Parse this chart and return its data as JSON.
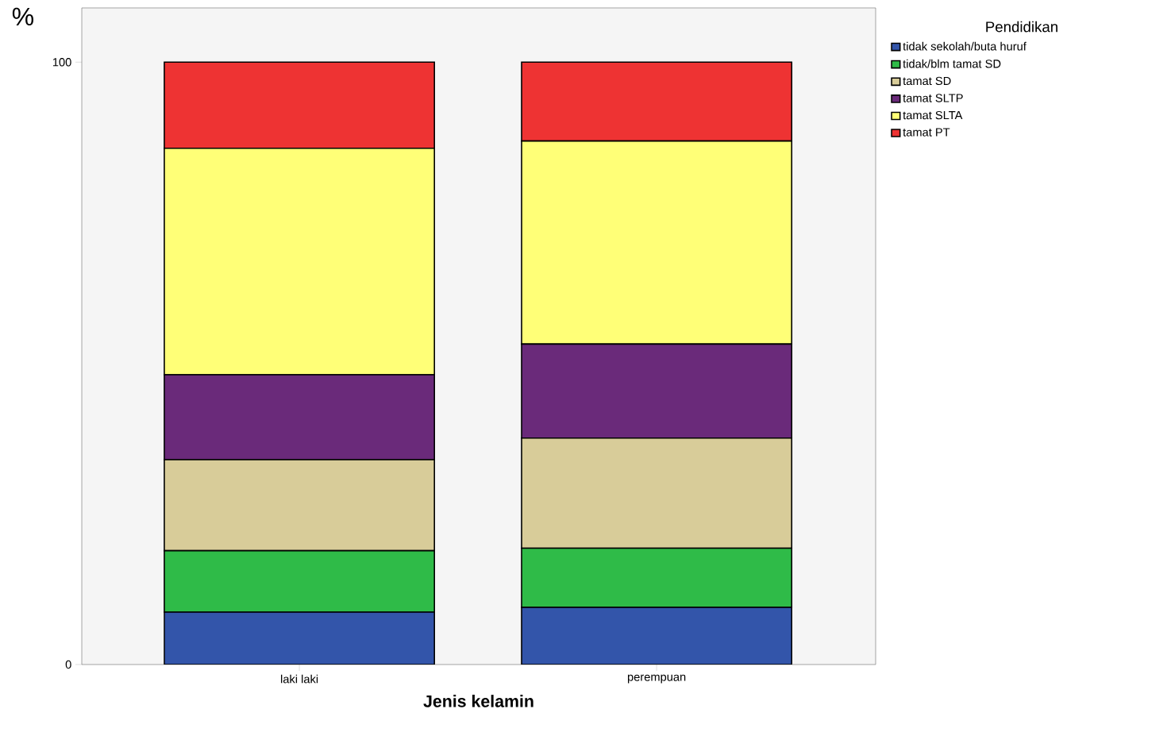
{
  "chart_data": {
    "type": "bar",
    "stacked": true,
    "categories": [
      "laki laki",
      "perempuan"
    ],
    "xlabel": "Jenis kelamin",
    "ylabel": "%",
    "legend_title": "Pendidikan",
    "legend": "right",
    "ylim": [
      0,
      109
    ],
    "yticks": [
      0,
      100
    ],
    "series": [
      {
        "name": "tidak sekolah/buta huruf",
        "color": "#3355aa",
        "values": [
          8.7,
          9.5
        ]
      },
      {
        "name": "tidak/blm tamat SD",
        "color": "#2fbb48",
        "values": [
          10.2,
          9.8
        ]
      },
      {
        "name": "tamat SD",
        "color": "#d8cc99",
        "values": [
          15.1,
          18.3
        ]
      },
      {
        "name": "tamat SLTP",
        "color": "#6a2a7a",
        "values": [
          14.1,
          15.6
        ]
      },
      {
        "name": "tamat SLTA",
        "color": "#ffff77",
        "values": [
          37.6,
          33.7
        ]
      },
      {
        "name": "tamat PT",
        "color": "#ee3333",
        "values": [
          14.3,
          13.1
        ]
      }
    ]
  }
}
